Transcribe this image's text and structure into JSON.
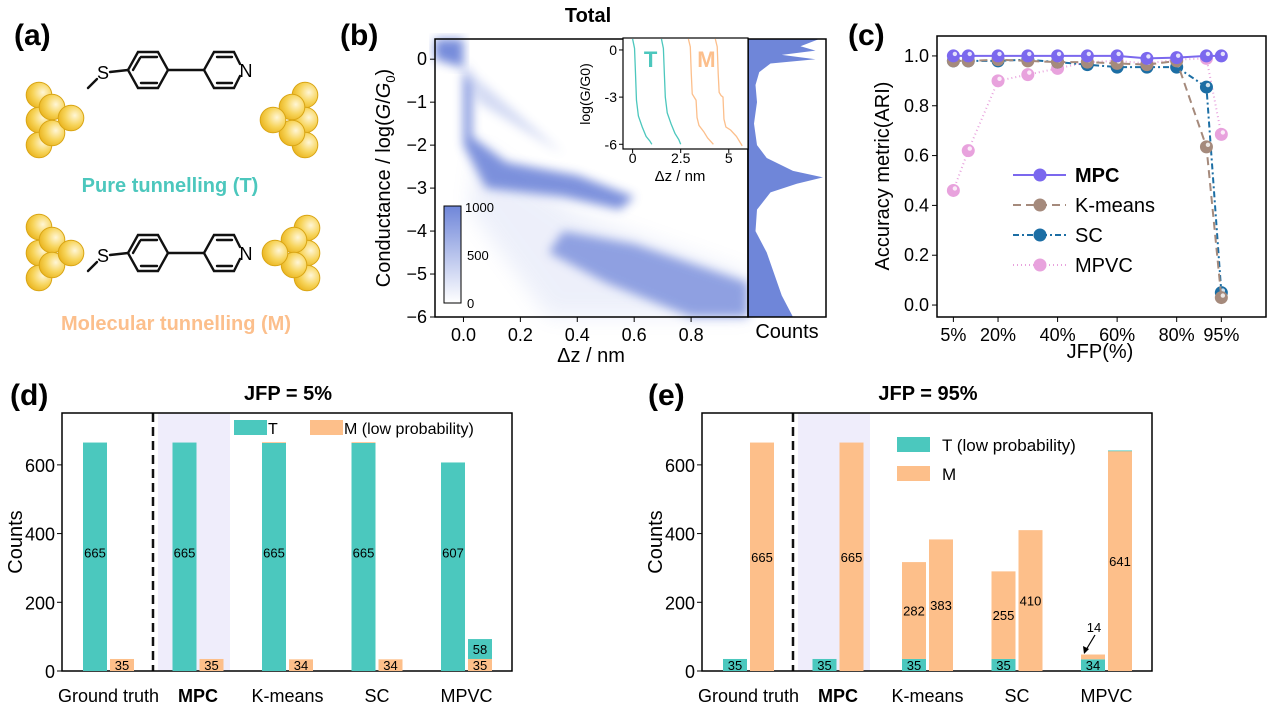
{
  "panels": {
    "a": {
      "label": "(a)",
      "pure_label": "Pure tunnelling (T)",
      "molecular_label": "Molecular tunnelling (M)",
      "atom_S": "S",
      "atom_N": "N",
      "colors": {
        "T": "#4cc7bd",
        "M": "#fcbf8c",
        "gold": "#f3c12e"
      }
    },
    "b": {
      "label": "(b)"
    },
    "c": {
      "label": "(c)"
    },
    "d": {
      "label": "(d)"
    },
    "e": {
      "label": "(e)"
    }
  },
  "chart_data": [
    {
      "id": "b-main",
      "type": "heatmap",
      "title": "Total",
      "xlabel": "Δz / nm",
      "ylabel_parts": [
        "Conductance / log(",
        "G",
        "/",
        "G",
        "0",
        ")"
      ],
      "xlim": [
        -0.1,
        1.0
      ],
      "ylim": [
        -6,
        0.47
      ],
      "xticks": [
        "0.0",
        "0.2",
        "0.4",
        "0.6",
        "0.8"
      ],
      "yticks": [
        "0",
        "−1",
        "−2",
        "−3",
        "−4",
        "−5",
        "−6"
      ],
      "colorbar": {
        "ticks": [
          "1000",
          "500",
          "0"
        ],
        "range": [
          0,
          1000
        ]
      },
      "marginal_label": "Counts",
      "color": "#6f86d9"
    },
    {
      "id": "b-inset",
      "type": "line",
      "xlabel": "Δz / nm",
      "ylabel": "log(G/G0)",
      "xlim": [
        -0.5,
        6
      ],
      "ylim": [
        -6.3,
        0.76
      ],
      "xticks": [
        "0",
        "2.5",
        "5"
      ],
      "yticks": [
        "0",
        "-3",
        "-6"
      ],
      "series": [
        {
          "name": "T",
          "color": "#4cc7bd",
          "x": [
            0,
            0.1,
            0.15,
            0.2,
            0.3,
            0.5,
            0.7,
            0.9,
            1.0
          ],
          "y": [
            0.7,
            0.1,
            -1.5,
            -3.2,
            -4.2,
            -4.9,
            -5.5,
            -5.8,
            -6.0
          ]
        },
        {
          "name": "",
          "color": "#4cc7bd",
          "x": [
            1.5,
            1.6,
            1.65,
            1.7,
            1.8,
            2.0,
            2.2,
            2.4,
            2.5
          ],
          "y": [
            0.7,
            0.1,
            -1.5,
            -3.0,
            -4.0,
            -4.7,
            -5.3,
            -5.7,
            -6.0
          ]
        },
        {
          "name": "M",
          "color": "#fcbf8c",
          "x": [
            2.9,
            3.0,
            3.05,
            3.1,
            3.2,
            3.3,
            3.35,
            3.45,
            3.7,
            3.9,
            4.2
          ],
          "y": [
            0.7,
            0.2,
            -1.5,
            -2.8,
            -3.0,
            -3.2,
            -4.3,
            -4.8,
            -5.2,
            -5.6,
            -6.0
          ]
        },
        {
          "name": "",
          "color": "#fcbf8c",
          "x": [
            4.3,
            4.4,
            4.45,
            4.5,
            4.6,
            4.7,
            4.75,
            4.85,
            5.1,
            5.4,
            5.7
          ],
          "y": [
            0.7,
            0.2,
            -1.5,
            -2.7,
            -2.9,
            -3.0,
            -4.4,
            -4.9,
            -5.1,
            -5.5,
            -6.1
          ]
        }
      ]
    },
    {
      "id": "c",
      "type": "line",
      "xlabel": "JFP(%)",
      "ylabel": "Accuracy metric(ARI)",
      "xlim": [
        -0.5,
        110
      ],
      "ylim": [
        -0.048,
        1.08
      ],
      "xticks": [
        5,
        20,
        40,
        60,
        80,
        95
      ],
      "xtick_labels": [
        "5%",
        "20%",
        "40%",
        "60%",
        "80%",
        "95%"
      ],
      "yticks": [
        "0.0",
        "0.2",
        "0.4",
        "0.6",
        "0.8",
        "1.0"
      ],
      "legend": "center",
      "x": [
        5,
        10,
        20,
        30,
        40,
        50,
        60,
        70,
        80,
        90,
        95
      ],
      "series": [
        {
          "name": "MPC",
          "bold": true,
          "color": "#7b68ee",
          "dash": "",
          "values": [
            1.0,
            1.0,
            1.0,
            1.0,
            1.0,
            1.0,
            1.0,
            0.99,
            0.993,
            1.0,
            1.0
          ]
        },
        {
          "name": "K-means",
          "color": "#a58a7c",
          "dash": "8 5",
          "values": [
            0.98,
            0.98,
            0.985,
            0.98,
            0.975,
            0.975,
            0.97,
            0.965,
            0.98,
            0.635,
            0.03
          ]
        },
        {
          "name": "SC",
          "color": "#1c6ea4",
          "dash": "6 3 2 3",
          "values": [
            0.98,
            0.98,
            0.98,
            0.985,
            0.975,
            0.965,
            0.955,
            0.955,
            0.955,
            0.875,
            0.05
          ]
        },
        {
          "name": "MPVC",
          "color": "#e8a2dd",
          "dash": "1 3",
          "values": [
            0.46,
            0.62,
            0.9,
            0.925,
            0.95,
            0.975,
            0.98,
            0.97,
            0.985,
            0.99,
            0.685
          ]
        }
      ]
    },
    {
      "id": "d",
      "type": "bar",
      "title": "JFP = 5%",
      "ylabel": "Counts",
      "ylim": [
        0,
        751
      ],
      "yticks": [
        "0",
        "200",
        "400",
        "600"
      ],
      "categories": [
        "Ground truth",
        "MPC",
        "K-means",
        "SC",
        "MPVC"
      ],
      "bold_category": "MPC",
      "legend": [
        {
          "name": "T",
          "color": "#4bc8be"
        },
        {
          "name": "M (low probability)",
          "color": "#fdbf8a"
        }
      ],
      "bars": [
        [
          [
            {
              "s": 0,
              "v": 665,
              "label": "665"
            }
          ],
          [
            {
              "s": 1,
              "v": 35,
              "label": "35"
            }
          ]
        ],
        [
          [
            {
              "s": 0,
              "v": 665,
              "label": "665"
            }
          ],
          [
            {
              "s": 1,
              "v": 35,
              "label": "35"
            }
          ]
        ],
        [
          [
            {
              "s": 0,
              "v": 665,
              "label": "665"
            },
            {
              "s": 1,
              "v": 1,
              "label": ""
            }
          ],
          [
            {
              "s": 1,
              "v": 34,
              "label": "34"
            }
          ]
        ],
        [
          [
            {
              "s": 0,
              "v": 665,
              "label": "665"
            },
            {
              "s": 1,
              "v": 1,
              "label": ""
            }
          ],
          [
            {
              "s": 1,
              "v": 34,
              "label": "34"
            }
          ]
        ],
        [
          [
            {
              "s": 0,
              "v": 607,
              "label": "607"
            }
          ],
          [
            {
              "s": 1,
              "v": 35,
              "label": "35"
            },
            {
              "s": 0,
              "v": 58,
              "label": "58"
            }
          ]
        ]
      ]
    },
    {
      "id": "e",
      "type": "bar",
      "title": "JFP = 95%",
      "ylabel": "Counts",
      "ylim": [
        0,
        751
      ],
      "yticks": [
        "0",
        "200",
        "400",
        "600"
      ],
      "categories": [
        "Ground truth",
        "MPC",
        "K-means",
        "SC",
        "MPVC"
      ],
      "bold_category": "MPC",
      "legend": [
        {
          "name": "T (low probability)",
          "color": "#4bc8be"
        },
        {
          "name": "M",
          "color": "#fdbf8a"
        }
      ],
      "annotation": "14",
      "bars": [
        [
          [
            {
              "s": 0,
              "v": 35,
              "label": "35"
            }
          ],
          [
            {
              "s": 1,
              "v": 665,
              "label": "665"
            }
          ]
        ],
        [
          [
            {
              "s": 0,
              "v": 35,
              "label": "35"
            }
          ],
          [
            {
              "s": 1,
              "v": 665,
              "label": "665"
            }
          ]
        ],
        [
          [
            {
              "s": 0,
              "v": 35,
              "label": "35"
            },
            {
              "s": 1,
              "v": 282,
              "label": "282"
            }
          ],
          [
            {
              "s": 1,
              "v": 383,
              "label": "383"
            }
          ]
        ],
        [
          [
            {
              "s": 0,
              "v": 35,
              "label": "35"
            },
            {
              "s": 1,
              "v": 255,
              "label": "255"
            }
          ],
          [
            {
              "s": 1,
              "v": 410,
              "label": "410"
            }
          ]
        ],
        [
          [
            {
              "s": 0,
              "v": 34,
              "label": "34"
            },
            {
              "s": 1,
              "v": 14,
              "label": ""
            }
          ],
          [
            {
              "s": 1,
              "v": 641,
              "label": "641"
            },
            {
              "s": 0,
              "v": 1,
              "label": ""
            }
          ]
        ]
      ]
    }
  ]
}
